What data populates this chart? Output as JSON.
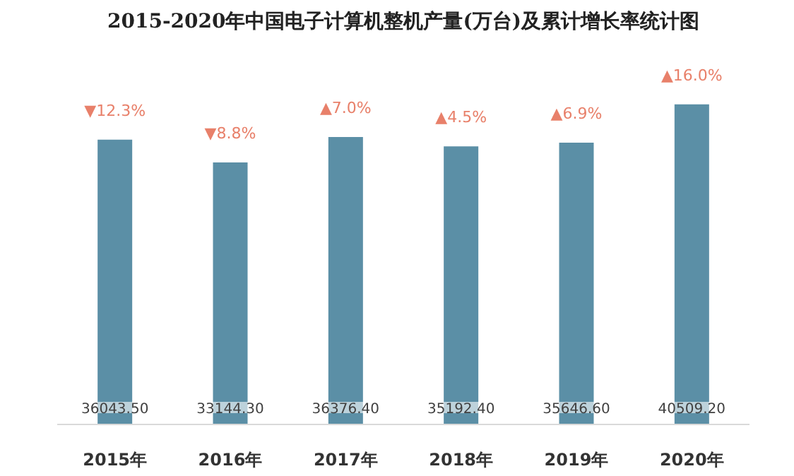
{
  "chart_data": {
    "type": "bar",
    "title": "2015-2020年中国电子计算机整机产量(万台)及累计增长率统计图",
    "categories": [
      "2015年",
      "2016年",
      "2017年",
      "2018年",
      "2019年",
      "2020年"
    ],
    "values": [
      36043.5,
      33144.3,
      36376.4,
      35192.4,
      35646.6,
      40509.2
    ],
    "value_labels": [
      "36043.50",
      "33144.30",
      "36376.40",
      "35192.40",
      "35646.60",
      "40509.20"
    ],
    "color": "#5b8fa6",
    "annotations": [
      "▼12.3%",
      "▼8.8%",
      "▲7.0%",
      "▲4.5%",
      "▲6.9%",
      "▲16.0%"
    ]
  }
}
